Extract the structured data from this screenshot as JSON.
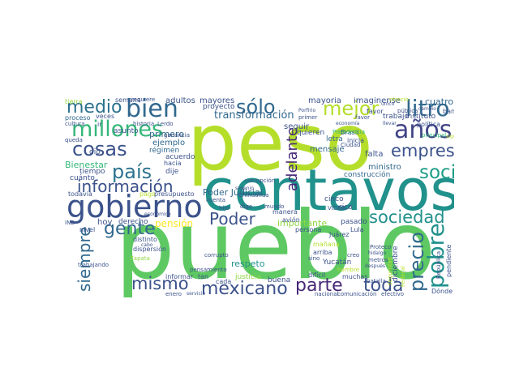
{
  "word_cloud": {
    "words": [
      {
        "text": "peso",
        "color": "#b5de2b"
      },
      {
        "text": "pueblo",
        "color": "#5ec962"
      },
      {
        "text": "centavos",
        "color": "#21918c"
      },
      {
        "text": "gobierno",
        "color": "#3b528b"
      },
      {
        "text": "millones",
        "color": "#35b779"
      },
      {
        "text": "bien",
        "color": "#31688e"
      },
      {
        "text": "sólo",
        "color": "#31688e"
      },
      {
        "text": "medio",
        "color": "#2c728e"
      },
      {
        "text": "cosas",
        "color": "#3b528b"
      },
      {
        "text": "años",
        "color": "#414487"
      },
      {
        "text": "mejor",
        "color": "#b5de2b"
      },
      {
        "text": "litro",
        "color": "#31688e"
      },
      {
        "text": "país",
        "color": "#2c728e"
      },
      {
        "text": "empresa",
        "color": "#3b528b"
      },
      {
        "text": "social",
        "color": "#1f9e89"
      },
      {
        "text": "información",
        "color": "#3b528b"
      },
      {
        "text": "gente",
        "color": "#31688e"
      },
      {
        "text": "sociedad",
        "color": "#21918c"
      },
      {
        "text": "mismo",
        "color": "#3b528b"
      },
      {
        "text": "mexicano",
        "color": "#3b528b"
      },
      {
        "text": "parte",
        "color": "#482878"
      },
      {
        "text": "toda",
        "color": "#3b528b"
      },
      {
        "text": "precio",
        "color": "#31688e"
      },
      {
        "text": "pobre",
        "color": "#21918c"
      },
      {
        "text": "siempre",
        "color": "#31688e"
      },
      {
        "text": "Poder",
        "color": "#3b528b"
      },
      {
        "text": "adelante",
        "color": "#482878"
      },
      {
        "text": "transformación",
        "color": "#31688e"
      },
      {
        "text": "pensión",
        "color": "#fde725"
      },
      {
        "text": "importante",
        "color": "#90d743"
      },
      {
        "text": "Poder Judicial",
        "color": "#31688e"
      },
      {
        "text": "mayoría",
        "color": "#3b528b"
      },
      {
        "text": "imagínense",
        "color": "#3b528b"
      },
      {
        "text": "cuatro",
        "color": "#31688e"
      },
      {
        "text": "mayores",
        "color": "#3b528b"
      },
      {
        "text": "adultos",
        "color": "#3b528b"
      },
      {
        "text": "proyecto",
        "color": "#3b528b"
      },
      {
        "text": "primero",
        "color": "#31688e"
      },
      {
        "text": "Bienestar",
        "color": "#35b779"
      },
      {
        "text": "respeto",
        "color": "#21918c"
      },
      {
        "text": "seguir",
        "color": "#3b528b"
      },
      {
        "text": "quieren",
        "color": "#3b528b"
      },
      {
        "text": "letra",
        "color": "#31688e"
      },
      {
        "text": "falta",
        "color": "#3b528b"
      },
      {
        "text": "ministro",
        "color": "#31688e"
      },
      {
        "text": "mensaje",
        "color": "#31688e"
      },
      {
        "text": "construcción",
        "color": "#31688e"
      },
      {
        "text": "semana",
        "color": "#3b528b"
      },
      {
        "text": "requiere",
        "color": "#3b528b"
      },
      {
        "text": "tierra",
        "color": "#90d743"
      },
      {
        "text": "veces",
        "color": "#3b528b"
      },
      {
        "text": "proceso",
        "color": "#31688e"
      },
      {
        "text": "cultura",
        "color": "#3b528b"
      },
      {
        "text": "queda",
        "color": "#3b528b"
      },
      {
        "text": "historia",
        "color": "#3b528b"
      },
      {
        "text": "Lerdo",
        "color": "#3b528b"
      },
      {
        "text": "ejemplo",
        "color": "#31688e"
      },
      {
        "text": "ganancia",
        "color": "#3b528b"
      },
      {
        "text": "asunto",
        "color": "#3b528b"
      },
      {
        "text": "tiempo",
        "color": "#3b528b"
      },
      {
        "text": "cuánto",
        "color": "#3b528b"
      },
      {
        "text": "régimen",
        "color": "#31688e"
      },
      {
        "text": "acuerdo",
        "color": "#3b528b"
      },
      {
        "text": "hacia",
        "color": "#3b528b"
      },
      {
        "text": "dije",
        "color": "#3b528b"
      },
      {
        "text": "dio",
        "color": "#3b528b"
      },
      {
        "text": "hoy",
        "color": "#3b528b"
      },
      {
        "text": "todavía",
        "color": "#3b528b"
      },
      {
        "text": "paga",
        "color": "#b5de2b"
      },
      {
        "text": "presupuesto",
        "color": "#3b528b"
      },
      {
        "text": "derecho",
        "color": "#3b528b"
      },
      {
        "text": "INE",
        "color": "#3b528b"
      },
      {
        "text": "nivel",
        "color": "#3b528b"
      },
      {
        "text": "distinto",
        "color": "#3b528b"
      },
      {
        "text": "dispersión",
        "color": "#3b528b"
      },
      {
        "text": "Zapata",
        "color": "#90d743"
      },
      {
        "text": "trabajando",
        "color": "#3b528b"
      },
      {
        "text": "cabo",
        "color": "#3b528b"
      },
      {
        "text": "económico",
        "color": "#3b528b"
      },
      {
        "text": "corrupción",
        "color": "#3b528b"
      },
      {
        "text": "corrupto",
        "color": "#3b528b"
      },
      {
        "text": "pensamiento",
        "color": "#3b528b"
      },
      {
        "text": "informar",
        "color": "#3b528b"
      },
      {
        "text": "tan",
        "color": "#3b528b"
      },
      {
        "text": "cada",
        "color": "#3b528b"
      },
      {
        "text": "justicia",
        "color": "#90d743"
      },
      {
        "text": "buena",
        "color": "#3b528b"
      },
      {
        "text": "difícil",
        "color": "#3b528b"
      },
      {
        "text": "muchas",
        "color": "#3b528b"
      },
      {
        "text": "batalla",
        "color": "#3b528b"
      },
      {
        "text": "nacional",
        "color": "#3b528b"
      },
      {
        "text": "comunicación",
        "color": "#3b528b"
      },
      {
        "text": "efectivo",
        "color": "#3b528b"
      },
      {
        "text": "Dónde",
        "color": "#3b528b"
      },
      {
        "text": "enero",
        "color": "#3b528b"
      },
      {
        "text": "servicio",
        "color": "#3b528b"
      },
      {
        "text": "Juárez",
        "color": "#3b528b"
      },
      {
        "text": "Yucatán",
        "color": "#3b528b"
      },
      {
        "text": "arriba",
        "color": "#3b528b"
      },
      {
        "text": "mañana",
        "color": "#b5de2b"
      },
      {
        "text": "persona",
        "color": "#3b528b"
      },
      {
        "text": "avión",
        "color": "#3b528b"
      },
      {
        "text": "manera",
        "color": "#3b528b"
      },
      {
        "text": "mundo",
        "color": "#3b528b"
      },
      {
        "text": "cinco",
        "color": "#3b528b"
      },
      {
        "text": "pasado",
        "color": "#3b528b"
      },
      {
        "text": "rico",
        "color": "#3b528b"
      },
      {
        "text": "Lula",
        "color": "#3b528b"
      },
      {
        "text": "Brasil",
        "color": "#3b528b"
      },
      {
        "text": "inicia",
        "color": "#3b528b"
      },
      {
        "text": "Ciudad",
        "color": "#3b528b"
      },
      {
        "text": "trabajo",
        "color": "#3b528b"
      },
      {
        "text": "instituto",
        "color": "#3b528b"
      },
      {
        "text": "política",
        "color": "#3b528b"
      },
      {
        "text": "banco",
        "color": "#3b528b"
      },
      {
        "text": "pública",
        "color": "#3b528b"
      },
      {
        "text": "principal",
        "color": "#35b779"
      },
      {
        "text": "Presidencia",
        "color": "#35b779"
      },
      {
        "text": "Porfirio",
        "color": "#3b528b"
      },
      {
        "text": "primer",
        "color": "#3b528b"
      },
      {
        "text": "favor",
        "color": "#3b528b"
      },
      {
        "text": "economía",
        "color": "#3b528b"
      },
      {
        "text": "ofreció",
        "color": "#b5de2b"
      },
      {
        "text": "cambio",
        "color": "#3b528b"
      },
      {
        "text": "único",
        "color": "#3b528b"
      },
      {
        "text": "llevar",
        "color": "#3b528b"
      },
      {
        "text": "sigue",
        "color": "#b5de2b"
      },
      {
        "text": "Proteco",
        "color": "#3b528b"
      },
      {
        "text": "hidalgo",
        "color": "#3b528b"
      },
      {
        "text": "metros",
        "color": "#3b528b"
      },
      {
        "text": "sexenio",
        "color": "#3b528b"
      },
      {
        "text": "Chihuahua",
        "color": "#3b528b"
      },
      {
        "text": "cuenta",
        "color": "#3b528b"
      },
      {
        "text": "hijo",
        "color": "#3b528b"
      },
      {
        "text": "digo",
        "color": "#3b528b"
      },
      {
        "text": "VIDEO",
        "color": "#3b528b"
      },
      {
        "text": "creo",
        "color": "#3b528b"
      },
      {
        "text": "hombre",
        "color": "#b5de2b"
      },
      {
        "text": "sino",
        "color": "#3b528b"
      },
      {
        "text": "después",
        "color": "#3b528b"
      },
      {
        "text": "diciembre",
        "color": "#3b528b"
      },
      {
        "text": "pendiente",
        "color": "#3b528b"
      },
      {
        "text": "República",
        "color": "#3b528b"
      },
      {
        "text": "Federal",
        "color": "#b5de2b"
      },
      {
        "text": "seguridad",
        "color": "#b5de2b"
      },
      {
        "text": "ir",
        "color": "#3b528b"
      },
      {
        "text": "favor",
        "color": "#3b528b"
      }
    ]
  }
}
